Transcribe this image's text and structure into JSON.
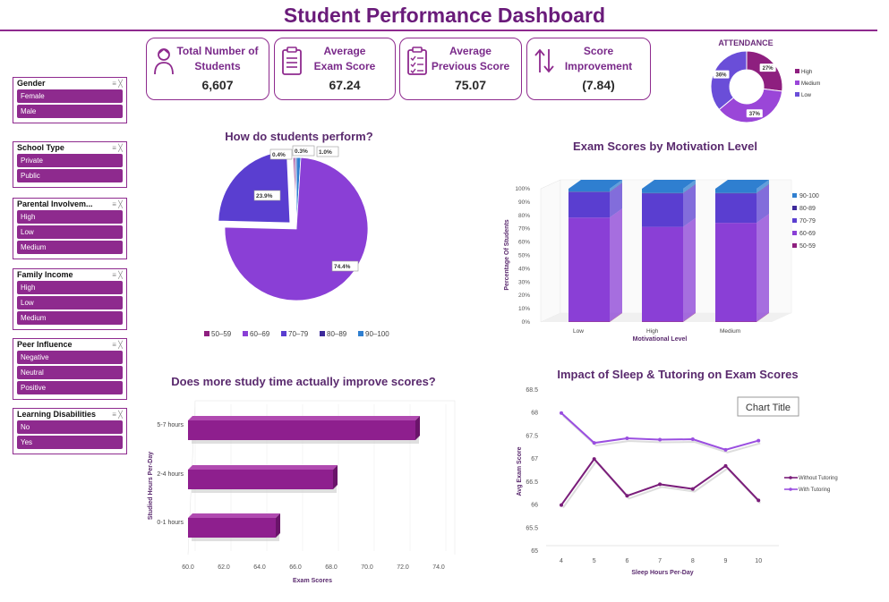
{
  "page": {
    "title": "Student Performance Dashboard"
  },
  "kpis": [
    {
      "label_line1": "Total Number of",
      "label_line2": "Students",
      "value": "6,607",
      "icon": "student-icon"
    },
    {
      "label_line1": "Average",
      "label_line2": "Exam Score",
      "value": "67.24",
      "icon": "clipboard-icon"
    },
    {
      "label_line1": "Average",
      "label_line2": "Previous Score",
      "value": "75.07",
      "icon": "clipboard-check-icon"
    },
    {
      "label_line1": "Score",
      "label_line2": "Improvement",
      "value": "(7.84)",
      "icon": "up-down-arrows-icon"
    }
  ],
  "slicers": [
    {
      "title": "Gender",
      "items": [
        "Female",
        "Male"
      ]
    },
    {
      "title": "School Type",
      "items": [
        "Private",
        "Public"
      ]
    },
    {
      "title": "Parental Involvem...",
      "items": [
        "High",
        "Low",
        "Medium"
      ]
    },
    {
      "title": "Family Income",
      "items": [
        "High",
        "Low",
        "Medium"
      ]
    },
    {
      "title": "Peer Influence",
      "items": [
        "Negative",
        "Neutral",
        "Positive"
      ]
    },
    {
      "title": "Learning Disabilities",
      "items": [
        "No",
        "Yes"
      ]
    }
  ],
  "colors": {
    "c50": "#8e1f7f",
    "c60": "#8a3fd6",
    "c70": "#5a3ed0",
    "c80": "#3d2a9a",
    "c90": "#2f7fd0",
    "high": "#8e1f7f",
    "medium": "#9a46d8",
    "low": "#6a4ed8",
    "without": "#7a1d7a",
    "with": "#9a4ee0"
  },
  "chart_data": [
    {
      "type": "pie",
      "title": "ATTENDANCE",
      "labels": [
        "High",
        "Medium",
        "Low"
      ],
      "data_labels": [
        "27%",
        "37%",
        "36%"
      ],
      "values": [
        27,
        37,
        36
      ]
    },
    {
      "type": "pie",
      "title": "How do students perform?",
      "labels": [
        "50–59",
        "60–69",
        "70–79",
        "80–89",
        "90–100"
      ],
      "data_labels": [
        "0.4%",
        "74.4%",
        "23.9%",
        "0.3%",
        "1.0%"
      ],
      "values": [
        0.4,
        74.4,
        23.9,
        0.3,
        1.0
      ]
    },
    {
      "type": "bar",
      "title": "Exam Scores by Motivation Level",
      "categories": [
        "Low",
        "High",
        "Medium"
      ],
      "xlabel": "Motivational Level",
      "ylabel": "Percentage Of Students",
      "y_ticks": [
        "0%",
        "10%",
        "20%",
        "30%",
        "40%",
        "50%",
        "60%",
        "70%",
        "80%",
        "90%",
        "100%"
      ],
      "legend": [
        "90-100",
        "80-89",
        "70-79",
        "60-69",
        "50-59"
      ],
      "stacked": true,
      "series": [
        {
          "name": "50-59",
          "values": [
            0.4,
            0.4,
            0.4
          ]
        },
        {
          "name": "60-69",
          "values": [
            78,
            71,
            74
          ]
        },
        {
          "name": "70-79",
          "values": [
            19,
            25,
            22
          ]
        },
        {
          "name": "80-89",
          "values": [
            0.4,
            0.4,
            0.4
          ]
        },
        {
          "name": "90-100",
          "values": [
            2.2,
            3.2,
            3.2
          ]
        }
      ],
      "ylim": [
        0,
        100
      ]
    },
    {
      "type": "bar",
      "orientation": "horizontal",
      "title": "Does more study time actually improve scores?",
      "categories": [
        "5-7 hours",
        "2-4 hours",
        "0-1 hours"
      ],
      "values": [
        72.7,
        68.1,
        64.9
      ],
      "xlabel": "Exam Scores",
      "ylabel": "Studied Hours Per-Day",
      "x_ticks": [
        "60.0",
        "62.0",
        "64.0",
        "66.0",
        "68.0",
        "70.0",
        "72.0",
        "74.0"
      ],
      "xlim": [
        60,
        74
      ]
    },
    {
      "type": "line",
      "title": "Impact of Sleep & Tutoring on Exam Scores",
      "x": [
        4,
        5,
        6,
        7,
        8,
        9,
        10
      ],
      "xlabel": "Sleep Hours Per-Day",
      "ylabel": "Avg Exam Score",
      "y_ticks": [
        "65",
        "65.5",
        "66",
        "66.5",
        "67",
        "67.5",
        "68",
        "68.5"
      ],
      "ylim": [
        65,
        68.5
      ],
      "series": [
        {
          "name": "Without Tutoring",
          "values": [
            66.0,
            67.0,
            66.2,
            66.45,
            66.35,
            66.85,
            66.1
          ]
        },
        {
          "name": "With Tutoring",
          "values": [
            68.0,
            67.35,
            67.45,
            67.42,
            67.43,
            67.2,
            67.4
          ]
        }
      ],
      "overlay_label": "Chart Title"
    }
  ]
}
